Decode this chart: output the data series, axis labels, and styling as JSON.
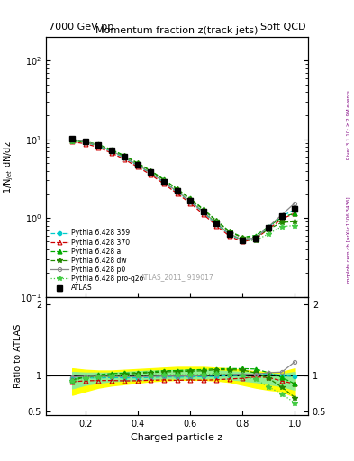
{
  "title_top_left": "7000 GeV pp",
  "title_top_right": "Soft QCD",
  "main_title": "Momentum fraction z(track jets)",
  "ylabel_main": "1/N$_{jet}$ dN/dz",
  "ylabel_ratio": "Ratio to ATLAS",
  "xlabel": "Charged particle z",
  "right_label": "Rivet 3.1.10; ≥ 2.9M events",
  "right_label2": "mcplots.cern.ch [arXiv:1306.3436]",
  "watermark": "ATLAS_2011_I919017",
  "z_values": [
    0.15,
    0.2,
    0.25,
    0.3,
    0.35,
    0.4,
    0.45,
    0.5,
    0.55,
    0.6,
    0.65,
    0.7,
    0.75,
    0.8,
    0.85,
    0.9,
    0.95,
    1.0
  ],
  "atlas_y": [
    10.2,
    9.5,
    8.5,
    7.2,
    6.0,
    4.8,
    3.8,
    2.9,
    2.2,
    1.65,
    1.2,
    0.85,
    0.62,
    0.52,
    0.55,
    0.75,
    1.05,
    1.3
  ],
  "atlas_err": [
    0.3,
    0.25,
    0.22,
    0.18,
    0.15,
    0.12,
    0.1,
    0.08,
    0.07,
    0.05,
    0.04,
    0.03,
    0.03,
    0.03,
    0.04,
    0.05,
    0.07,
    0.1
  ],
  "py359_y": [
    9.8,
    9.2,
    8.2,
    7.0,
    5.8,
    4.65,
    3.7,
    2.85,
    2.15,
    1.62,
    1.18,
    0.84,
    0.62,
    0.52,
    0.56,
    0.77,
    1.05,
    1.28
  ],
  "py370_y": [
    9.3,
    8.8,
    7.9,
    6.7,
    5.55,
    4.45,
    3.55,
    2.72,
    2.05,
    1.55,
    1.12,
    0.8,
    0.59,
    0.5,
    0.54,
    0.73,
    0.97,
    1.15
  ],
  "pya_y": [
    9.6,
    9.4,
    8.6,
    7.4,
    6.2,
    5.0,
    4.0,
    3.1,
    2.35,
    1.78,
    1.3,
    0.93,
    0.68,
    0.57,
    0.6,
    0.78,
    1.02,
    1.15
  ],
  "pydw_y": [
    9.5,
    9.3,
    8.4,
    7.2,
    6.1,
    4.95,
    3.95,
    3.05,
    2.32,
    1.75,
    1.28,
    0.92,
    0.67,
    0.56,
    0.57,
    0.72,
    0.88,
    0.9
  ],
  "pyp0_y": [
    10.0,
    9.4,
    8.4,
    7.1,
    5.9,
    4.72,
    3.75,
    2.88,
    2.18,
    1.64,
    1.2,
    0.86,
    0.63,
    0.53,
    0.56,
    0.78,
    1.1,
    1.55
  ],
  "pyproq2o_y": [
    9.4,
    9.2,
    8.3,
    7.1,
    5.95,
    4.8,
    3.82,
    2.95,
    2.22,
    1.67,
    1.22,
    0.87,
    0.63,
    0.52,
    0.52,
    0.63,
    0.78,
    0.8
  ],
  "band_yellow_lo": [
    0.73,
    0.78,
    0.83,
    0.86,
    0.88,
    0.9,
    0.92,
    0.93,
    0.94,
    0.94,
    0.94,
    0.93,
    0.91,
    0.87,
    0.83,
    0.8,
    0.78,
    0.7
  ],
  "band_yellow_hi": [
    1.1,
    1.08,
    1.07,
    1.07,
    1.08,
    1.09,
    1.1,
    1.11,
    1.12,
    1.12,
    1.12,
    1.11,
    1.1,
    1.08,
    1.06,
    1.05,
    1.05,
    1.1
  ],
  "band_green_lo": [
    0.82,
    0.87,
    0.9,
    0.92,
    0.93,
    0.94,
    0.95,
    0.96,
    0.96,
    0.96,
    0.96,
    0.96,
    0.95,
    0.93,
    0.91,
    0.88,
    0.85,
    0.8
  ],
  "band_green_hi": [
    1.05,
    1.04,
    1.04,
    1.04,
    1.05,
    1.06,
    1.07,
    1.07,
    1.08,
    1.08,
    1.08,
    1.07,
    1.06,
    1.05,
    1.04,
    1.03,
    1.02,
    1.05
  ],
  "color_359": "#00cccc",
  "color_370": "#cc0000",
  "color_a": "#00aa00",
  "color_dw": "#228800",
  "color_p0": "#888888",
  "color_proq2o": "#44cc44",
  "ylim_main": [
    0.1,
    200
  ],
  "ylim_ratio": [
    0.45,
    2.1
  ],
  "xlim": [
    0.05,
    1.05
  ]
}
